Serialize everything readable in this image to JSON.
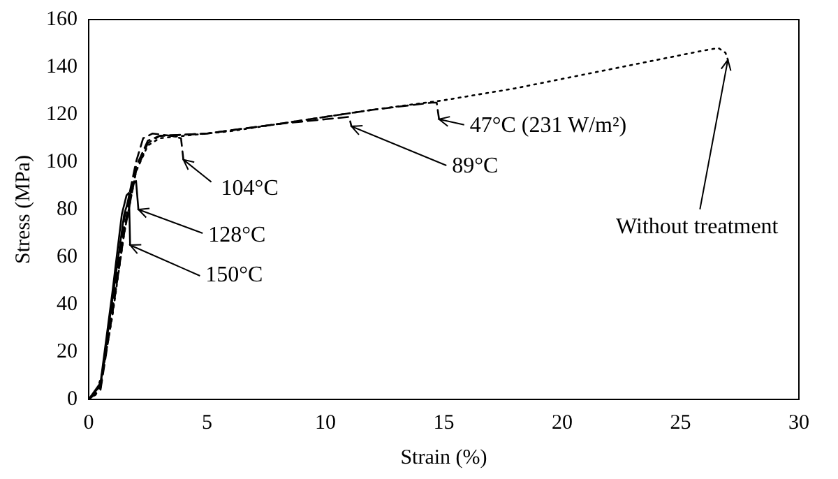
{
  "chart_data": {
    "type": "line",
    "xlabel": "Strain (%)",
    "ylabel": "Stress (MPa)",
    "xlim": [
      0,
      30
    ],
    "xticks": [
      0,
      5,
      10,
      15,
      20,
      25,
      30
    ],
    "ylim": [
      0,
      160
    ],
    "yticks": [
      0,
      20,
      40,
      60,
      80,
      100,
      120,
      140,
      160
    ],
    "grid": false,
    "legend": false,
    "marker": "none",
    "series": [
      {
        "color": "#000000",
        "line_style": "dotted",
        "x": [
          0,
          0.3,
          0.6,
          1,
          1.5,
          2,
          2.5,
          3,
          4,
          6,
          8,
          10,
          12,
          15,
          18,
          20,
          22,
          24,
          26,
          26.6,
          26.9,
          27
        ],
        "values": [
          0,
          2,
          12,
          35,
          70,
          96,
          107,
          110,
          111,
          113,
          116,
          119,
          122,
          126,
          131,
          135,
          139,
          143,
          147,
          148,
          146,
          143
        ]
      },
      {
        "color": "#000000",
        "line_style": "dashed",
        "x": [
          0,
          0.5,
          1,
          1.5,
          2,
          2.5,
          3,
          5,
          8,
          10,
          12,
          14.5,
          14.7,
          14.8
        ],
        "values": [
          0,
          5,
          38,
          72,
          98,
          109,
          111,
          112,
          116,
          119,
          122,
          125,
          125,
          118
        ]
      },
      {
        "color": "#000000",
        "line_style": "dashed",
        "x": [
          0,
          0.5,
          1,
          1.5,
          2,
          2.5,
          3,
          5,
          8,
          10,
          11,
          11.1
        ],
        "values": [
          0,
          4,
          36,
          70,
          96,
          108,
          111,
          112,
          116,
          118,
          119,
          115
        ]
      },
      {
        "color": "#000000",
        "line_style": "dashed",
        "x": [
          0,
          0.5,
          1,
          1.5,
          2,
          2.3,
          2.7,
          3.5,
          3.9,
          4
        ],
        "values": [
          0,
          5,
          40,
          76,
          100,
          110,
          112,
          111,
          110,
          101
        ]
      },
      {
        "color": "#000000",
        "line_style": "solid",
        "x": [
          0,
          0.5,
          1,
          1.5,
          1.9,
          2,
          2.1
        ],
        "values": [
          0,
          6,
          42,
          78,
          91,
          92,
          80
        ]
      },
      {
        "color": "#000000",
        "line_style": "solid",
        "x": [
          0,
          0.5,
          1,
          1.4,
          1.6,
          1.7,
          1.75
        ],
        "values": [
          0,
          7,
          45,
          78,
          86,
          87,
          65
        ]
      }
    ],
    "annotations": [
      {
        "text": "104°C",
        "x": 4,
        "y": 101
      },
      {
        "text": "128°C",
        "x": 2.1,
        "y": 80
      },
      {
        "text": "150°C",
        "x": 1.75,
        "y": 65
      },
      {
        "text": "89°C",
        "x": 11.1,
        "y": 115
      },
      {
        "text": "47°C (231 W/m²)",
        "x": 14.8,
        "y": 118
      },
      {
        "text": "Without treatment",
        "x": 27,
        "y": 143
      }
    ]
  }
}
